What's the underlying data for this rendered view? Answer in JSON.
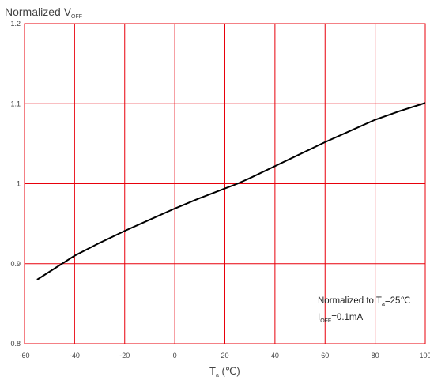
{
  "chart_data": {
    "type": "line",
    "title": "",
    "ylabel": {
      "main": "Normalized V",
      "sub": "OFF"
    },
    "xlabel": {
      "main": "T",
      "sub": "a",
      "unit": " (℃)"
    },
    "xlim": [
      -60,
      100
    ],
    "ylim": [
      0.8,
      1.2
    ],
    "x_ticks": [
      -60,
      -40,
      -20,
      0,
      20,
      40,
      60,
      80,
      100
    ],
    "x_tick_labels": [
      "-60",
      "-40",
      "-20",
      "0",
      "20",
      "40",
      "60",
      "80",
      "100"
    ],
    "y_ticks": [
      0.8,
      0.9,
      1.0,
      1.1,
      1.2
    ],
    "y_tick_labels": [
      "0.8",
      "0.9",
      "1",
      "1.1",
      "1.2"
    ],
    "grid": true,
    "grid_color": "#e8000b",
    "line_color": "#000000",
    "series": [
      {
        "x": [
          -55,
          -50,
          -45,
          -40,
          -30,
          -20,
          -10,
          0,
          10,
          20,
          25,
          30,
          40,
          50,
          60,
          70,
          80,
          90,
          100
        ],
        "y": [
          0.88,
          0.89,
          0.9,
          0.91,
          0.926,
          0.941,
          0.955,
          0.969,
          0.982,
          0.994,
          1.0,
          1.007,
          1.022,
          1.037,
          1.052,
          1.066,
          1.08,
          1.091,
          1.101
        ]
      }
    ],
    "annotation": {
      "line1_main": "Normalized to T",
      "line1_sub": "a",
      "line1_tail": "=25℃",
      "line2_main": "I",
      "line2_sub": "OFF",
      "line2_tail": "=0.1mA"
    }
  }
}
